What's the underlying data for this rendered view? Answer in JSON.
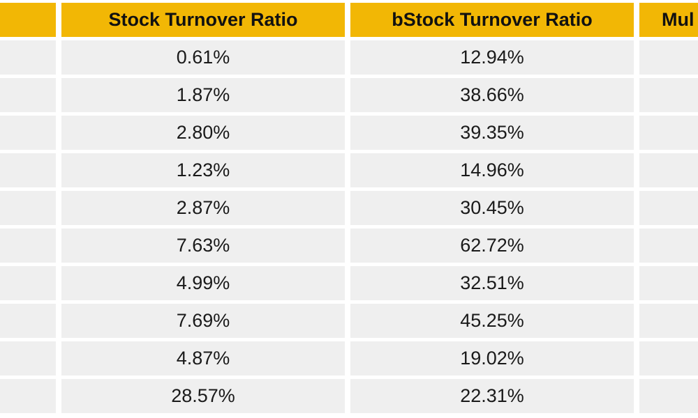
{
  "table": {
    "headers": [
      "",
      "Stock Turnover Ratio",
      "bStock Turnover Ratio",
      "Mul"
    ],
    "rows": [
      [
        "",
        "0.61%",
        "12.94%",
        ""
      ],
      [
        "",
        "1.87%",
        "38.66%",
        ""
      ],
      [
        "",
        "2.80%",
        "39.35%",
        ""
      ],
      [
        "",
        "1.23%",
        "14.96%",
        ""
      ],
      [
        "",
        "2.87%",
        "30.45%",
        ""
      ],
      [
        "",
        "7.63%",
        "62.72%",
        ""
      ],
      [
        "",
        "4.99%",
        "32.51%",
        ""
      ],
      [
        "",
        "7.69%",
        "45.25%",
        ""
      ],
      [
        "",
        "4.87%",
        "19.02%",
        ""
      ],
      [
        "",
        "28.57%",
        "22.31%",
        ""
      ]
    ]
  },
  "colors": {
    "header_bg": "#f2b705",
    "cell_bg": "#efefef",
    "text": "#1a1a1a"
  }
}
